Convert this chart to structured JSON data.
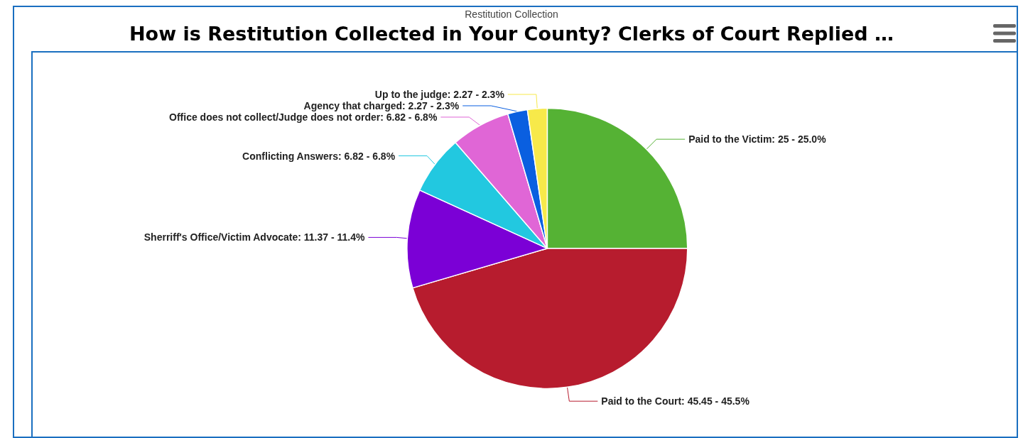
{
  "chart_data": {
    "type": "pie",
    "title": "How is Restitution Collected in Your  County? Clerks of Court Replied …",
    "subtitle": "Restitution Collection",
    "categories": [
      "Paid to the Victim",
      "Paid to the Court",
      "Sherriff's Office/Victim Advocate",
      "Conflicting Answers",
      "Office does not collect/Judge does not order",
      "Agency that charged",
      "Up to the judge"
    ],
    "values": [
      25,
      45.45,
      11.37,
      6.82,
      6.82,
      2.27,
      2.27
    ],
    "value_labels": [
      "25 - 25.0%",
      "45.45 - 45.5%",
      "11.37 - 11.4%",
      "6.82 - 6.8%",
      "6.82 - 6.8%",
      "2.27 - 2.3%",
      "2.27 - 2.3%"
    ],
    "colors": [
      "#55b234",
      "#b71c2e",
      "#7b00d6",
      "#22c8e0",
      "#e066d6",
      "#0a5fe0",
      "#f7e94a"
    ]
  }
}
